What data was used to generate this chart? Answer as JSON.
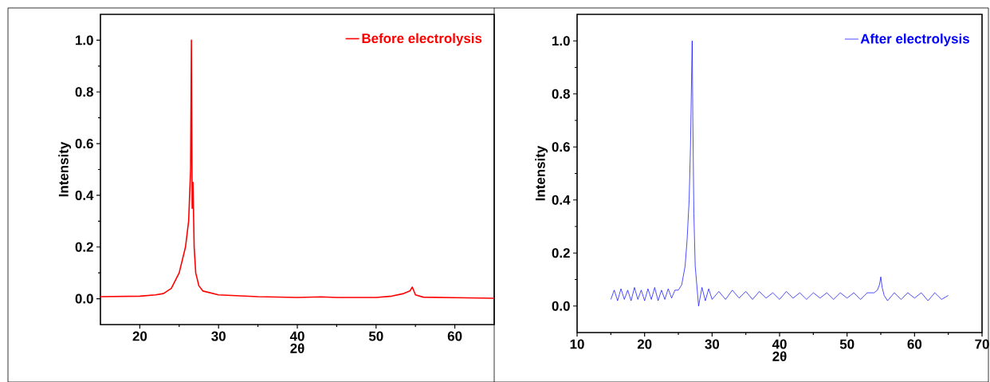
{
  "chart_data": [
    {
      "type": "line",
      "xlabel": "2θ",
      "ylabel": "Intensity",
      "xlim": [
        15,
        65
      ],
      "ylim": [
        -0.1,
        1.1
      ],
      "xticks": [
        20,
        30,
        40,
        50,
        60
      ],
      "yticks": [
        {
          "value": 0,
          "label": "0.0"
        },
        {
          "value": 0.2,
          "label": "0.2"
        },
        {
          "value": 0.4,
          "label": "0.4"
        },
        {
          "value": 0.6,
          "label": "0.6"
        },
        {
          "value": 0.8,
          "label": "0.8"
        },
        {
          "value": 1.0,
          "label": "1.0"
        }
      ],
      "legend": "top right",
      "grid": false,
      "marker": "none",
      "line_style": "solid",
      "series": [
        {
          "name": "Before electrolysis",
          "color": "#ff0000",
          "x": [
            15,
            20,
            22,
            23,
            24,
            25,
            25.8,
            26.2,
            26.45,
            26.55,
            26.65,
            26.75,
            26.9,
            27.1,
            27.5,
            28,
            30,
            35,
            40,
            43,
            45,
            50,
            52,
            53.5,
            54.3,
            54.6,
            55,
            56,
            60,
            65
          ],
          "values": [
            0.008,
            0.01,
            0.015,
            0.02,
            0.04,
            0.1,
            0.2,
            0.3,
            0.5,
            1.0,
            0.35,
            0.45,
            0.2,
            0.1,
            0.05,
            0.03,
            0.015,
            0.008,
            0.005,
            0.007,
            0.005,
            0.005,
            0.01,
            0.02,
            0.03,
            0.045,
            0.015,
            0.006,
            0.004,
            0.002
          ]
        }
      ]
    },
    {
      "type": "line",
      "xlabel": "2θ",
      "ylabel": "Intensity",
      "xlim": [
        10,
        70
      ],
      "ylim": [
        -0.1,
        1.1
      ],
      "xticks": [
        10,
        20,
        30,
        40,
        50,
        60,
        70
      ],
      "yticks": [
        {
          "value": 0,
          "label": "0.0"
        },
        {
          "value": 0.2,
          "label": "0.2"
        },
        {
          "value": 0.4,
          "label": "0.4"
        },
        {
          "value": 0.6,
          "label": "0.6"
        },
        {
          "value": 0.8,
          "label": "0.8"
        },
        {
          "value": 1.0,
          "label": "1.0"
        }
      ],
      "legend": "top right",
      "grid": false,
      "marker": "none",
      "line_style": "solid",
      "series": [
        {
          "name": "After electrolysis",
          "color": "#0000ff",
          "x": [
            15,
            15.5,
            16,
            16.5,
            17,
            17.5,
            18,
            18.5,
            19,
            19.5,
            20,
            20.5,
            21,
            21.5,
            22,
            22.5,
            23,
            23.5,
            24,
            24.5,
            25,
            25.5,
            26,
            26.3,
            26.6,
            26.8,
            26.95,
            27.05,
            27.15,
            27.3,
            27.5,
            27.8,
            28,
            28.5,
            29,
            29.5,
            30,
            31,
            32,
            33,
            34,
            35,
            36,
            37,
            38,
            39,
            40,
            41,
            42,
            43,
            44,
            45,
            46,
            47,
            48,
            49,
            50,
            51,
            52,
            53,
            54,
            54.5,
            54.8,
            55,
            55.2,
            55.5,
            56,
            57,
            58,
            59,
            60,
            61,
            62,
            63,
            64,
            65
          ],
          "values": [
            0.025,
            0.06,
            0.02,
            0.065,
            0.025,
            0.06,
            0.02,
            0.07,
            0.025,
            0.06,
            0.02,
            0.065,
            0.025,
            0.07,
            0.02,
            0.06,
            0.025,
            0.065,
            0.03,
            0.06,
            0.06,
            0.08,
            0.15,
            0.25,
            0.4,
            0.6,
            0.85,
            1.0,
            0.7,
            0.35,
            0.15,
            0.06,
            0.0,
            0.07,
            0.02,
            0.065,
            0.025,
            0.055,
            0.025,
            0.06,
            0.03,
            0.055,
            0.025,
            0.055,
            0.03,
            0.05,
            0.025,
            0.055,
            0.03,
            0.05,
            0.025,
            0.05,
            0.03,
            0.05,
            0.025,
            0.05,
            0.03,
            0.05,
            0.025,
            0.05,
            0.05,
            0.06,
            0.08,
            0.11,
            0.07,
            0.04,
            0.02,
            0.05,
            0.025,
            0.05,
            0.03,
            0.05,
            0.02,
            0.05,
            0.025,
            0.04
          ]
        }
      ]
    }
  ]
}
